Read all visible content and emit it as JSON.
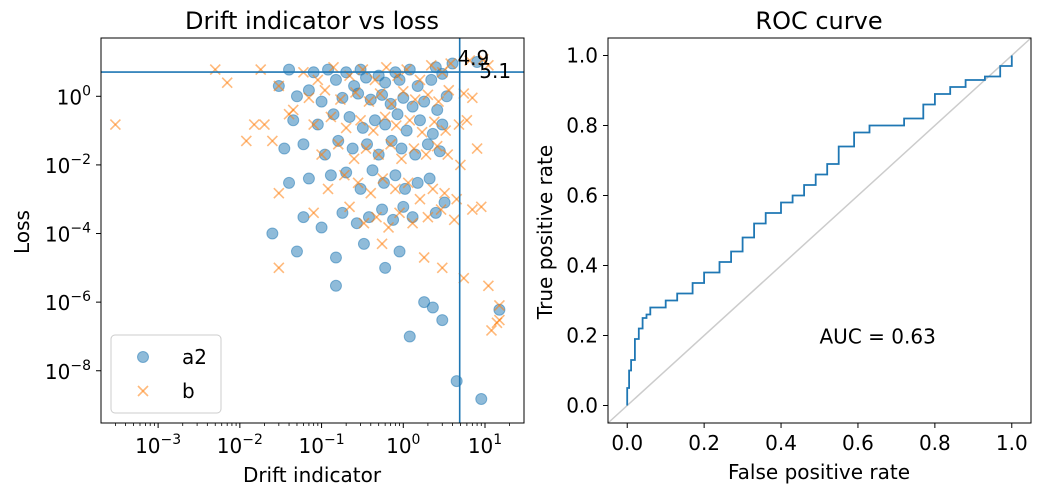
{
  "chart_data": [
    {
      "type": "scatter",
      "title": "Drift indicator vs loss",
      "xlabel": "Drift indicator",
      "ylabel": "Loss",
      "xscale": "log",
      "yscale": "log",
      "xlim": [
        0.0002,
        30
      ],
      "ylim": [
        3e-10,
        50
      ],
      "x_ticks": [
        {
          "base": "10",
          "exp": "−3",
          "value": 0.001
        },
        {
          "base": "10",
          "exp": "−2",
          "value": 0.01
        },
        {
          "base": "10",
          "exp": "−1",
          "value": 0.1
        },
        {
          "base": "10",
          "exp": "0",
          "value": 1
        },
        {
          "base": "10",
          "exp": "1",
          "value": 10
        }
      ],
      "y_ticks": [
        {
          "base": "10",
          "exp": "−8",
          "value": 1e-08
        },
        {
          "base": "10",
          "exp": "−6",
          "value": 1e-06
        },
        {
          "base": "10",
          "exp": "−4",
          "value": 0.0001
        },
        {
          "base": "10",
          "exp": "−2",
          "value": 0.01
        },
        {
          "base": "10",
          "exp": "0",
          "value": 1
        }
      ],
      "threshold_lines": {
        "x": 4.9,
        "y": 5.1,
        "color": "#1f77b4"
      },
      "annotations": [
        {
          "text": "4.9",
          "x": 4.6,
          "y": 13
        },
        {
          "text": "5.1",
          "x": 8.5,
          "y": 5.4
        }
      ],
      "legend": {
        "position": "lower-left",
        "entries": [
          {
            "label": "a2",
            "marker": "circle",
            "color": "#1f77b4"
          },
          {
            "label": "b",
            "marker": "x",
            "color": "#ff7f0e"
          }
        ]
      },
      "series": [
        {
          "name": "a2",
          "marker": "circle",
          "color": "#1f77b4",
          "points": [
            [
              0.04,
              6
            ],
            [
              0.08,
              5
            ],
            [
              0.12,
              6
            ],
            [
              0.2,
              5
            ],
            [
              0.3,
              6
            ],
            [
              0.5,
              4
            ],
            [
              0.8,
              5
            ],
            [
              1.2,
              6
            ],
            [
              2.5,
              7
            ],
            [
              4,
              9
            ],
            [
              8,
              10
            ],
            [
              0.15,
              3
            ],
            [
              0.25,
              2
            ],
            [
              0.35,
              3.5
            ],
            [
              0.6,
              2.5
            ],
            [
              0.9,
              3
            ],
            [
              1.5,
              2
            ],
            [
              2.2,
              3
            ],
            [
              3,
              4.5
            ],
            [
              0.03,
              2
            ],
            [
              0.05,
              1
            ],
            [
              0.07,
              1.5
            ],
            [
              0.1,
              0.7
            ],
            [
              0.18,
              0.9
            ],
            [
              0.28,
              1.2
            ],
            [
              0.4,
              0.8
            ],
            [
              0.55,
              1.1
            ],
            [
              0.7,
              0.6
            ],
            [
              1,
              0.9
            ],
            [
              1.3,
              0.5
            ],
            [
              1.8,
              0.7
            ],
            [
              2.6,
              0.4
            ],
            [
              3.4,
              1
            ],
            [
              0.045,
              0.2
            ],
            [
              0.09,
              0.15
            ],
            [
              0.14,
              0.3
            ],
            [
              0.22,
              0.25
            ],
            [
              0.32,
              0.12
            ],
            [
              0.45,
              0.2
            ],
            [
              0.6,
              0.15
            ],
            [
              0.85,
              0.3
            ],
            [
              1.1,
              0.1
            ],
            [
              1.6,
              0.2
            ],
            [
              2.3,
              0.08
            ],
            [
              3,
              0.15
            ],
            [
              0.035,
              0.03
            ],
            [
              0.06,
              0.04
            ],
            [
              0.11,
              0.02
            ],
            [
              0.16,
              0.05
            ],
            [
              0.24,
              0.03
            ],
            [
              0.36,
              0.04
            ],
            [
              0.5,
              0.02
            ],
            [
              0.72,
              0.05
            ],
            [
              0.95,
              0.03
            ],
            [
              1.4,
              0.02
            ],
            [
              2,
              0.04
            ],
            [
              2.8,
              0.025
            ],
            [
              0.04,
              0.003
            ],
            [
              0.07,
              0.004
            ],
            [
              0.13,
              0.005
            ],
            [
              0.2,
              0.006
            ],
            [
              0.3,
              0.002
            ],
            [
              0.42,
              0.007
            ],
            [
              0.58,
              0.003
            ],
            [
              0.8,
              0.005
            ],
            [
              1.05,
              0.002
            ],
            [
              1.5,
              0.003
            ],
            [
              2.1,
              0.004
            ],
            [
              0.025,
              0.0001
            ],
            [
              0.06,
              0.0003
            ],
            [
              0.1,
              0.00015
            ],
            [
              0.18,
              0.0004
            ],
            [
              0.27,
              0.0002
            ],
            [
              0.38,
              0.0003
            ],
            [
              0.55,
              0.0005
            ],
            [
              0.75,
              0.00025
            ],
            [
              1,
              0.0006
            ],
            [
              1.3,
              0.0003
            ],
            [
              2.5,
              0.0004
            ],
            [
              3.2,
              0.0008
            ],
            [
              0.05,
              3e-05
            ],
            [
              0.15,
              2e-05
            ],
            [
              0.33,
              5e-05
            ],
            [
              0.6,
              1e-05
            ],
            [
              0.9,
              3e-05
            ],
            [
              0.15,
              3e-06
            ],
            [
              1.8,
              1e-06
            ],
            [
              2.3,
              7e-07
            ],
            [
              3,
              3e-07
            ],
            [
              1.2,
              1e-07
            ],
            [
              4.5,
              5e-09
            ],
            [
              9,
              1.5e-09
            ],
            [
              15,
              6e-07
            ]
          ]
        },
        {
          "name": "b",
          "marker": "x",
          "color": "#ff7f0e",
          "points": [
            [
              0.0003,
              0.15
            ],
            [
              0.005,
              6
            ],
            [
              0.007,
              2.5
            ],
            [
              0.012,
              0.05
            ],
            [
              0.015,
              0.15
            ],
            [
              0.02,
              0.15
            ],
            [
              0.025,
              0.05
            ],
            [
              0.018,
              6
            ],
            [
              0.03,
              2
            ],
            [
              0.04,
              0.3
            ],
            [
              0.045,
              0.4
            ],
            [
              0.06,
              5
            ],
            [
              0.09,
              3
            ],
            [
              0.14,
              7
            ],
            [
              0.22,
              4
            ],
            [
              0.32,
              6
            ],
            [
              0.45,
              3
            ],
            [
              0.62,
              7
            ],
            [
              0.85,
              4
            ],
            [
              1.1,
              6
            ],
            [
              1.6,
              3
            ],
            [
              2.2,
              8
            ],
            [
              3,
              5
            ],
            [
              3.8,
              9
            ],
            [
              6.5,
              11
            ],
            [
              9.5,
              12
            ],
            [
              11,
              8
            ],
            [
              0.07,
              0.9
            ],
            [
              0.11,
              1.5
            ],
            [
              0.17,
              0.8
            ],
            [
              0.26,
              1.3
            ],
            [
              0.38,
              0.7
            ],
            [
              0.52,
              1.2
            ],
            [
              0.72,
              0.6
            ],
            [
              1,
              1.4
            ],
            [
              1.4,
              0.8
            ],
            [
              2,
              1.1
            ],
            [
              2.7,
              0.7
            ],
            [
              3.6,
              1.5
            ],
            [
              5.5,
              1.2
            ],
            [
              7,
              0.9
            ],
            [
              0.08,
              0.15
            ],
            [
              0.13,
              0.25
            ],
            [
              0.2,
              0.12
            ],
            [
              0.3,
              0.2
            ],
            [
              0.43,
              0.1
            ],
            [
              0.6,
              0.25
            ],
            [
              0.82,
              0.14
            ],
            [
              1.2,
              0.2
            ],
            [
              1.7,
              0.09
            ],
            [
              2.4,
              0.18
            ],
            [
              3.3,
              0.1
            ],
            [
              4.8,
              0.15
            ],
            [
              6,
              0.2
            ],
            [
              0.1,
              0.02
            ],
            [
              0.16,
              0.04
            ],
            [
              0.25,
              0.015
            ],
            [
              0.35,
              0.03
            ],
            [
              0.5,
              0.02
            ],
            [
              0.7,
              0.04
            ],
            [
              0.95,
              0.015
            ],
            [
              1.35,
              0.03
            ],
            [
              1.9,
              0.02
            ],
            [
              2.6,
              0.035
            ],
            [
              3.5,
              0.02
            ],
            [
              5,
              0.01
            ],
            [
              8,
              0.03
            ],
            [
              0.03,
              0.0015
            ],
            [
              0.12,
              0.002
            ],
            [
              0.19,
              0.005
            ],
            [
              0.28,
              0.003
            ],
            [
              0.4,
              0.0015
            ],
            [
              0.56,
              0.004
            ],
            [
              0.8,
              0.002
            ],
            [
              1.15,
              0.003
            ],
            [
              1.6,
              0.001
            ],
            [
              2.3,
              0.002
            ],
            [
              3.2,
              0.0015
            ],
            [
              4.5,
              0.001
            ],
            [
              0.08,
              0.0004
            ],
            [
              0.22,
              0.0006
            ],
            [
              0.33,
              0.0002
            ],
            [
              0.47,
              0.0003
            ],
            [
              0.66,
              0.00015
            ],
            [
              0.9,
              0.0004
            ],
            [
              1.3,
              0.0002
            ],
            [
              2,
              0.0003
            ],
            [
              2.9,
              0.0005
            ],
            [
              4.2,
              0.00025
            ],
            [
              7,
              0.0005
            ],
            [
              9,
              0.0006
            ],
            [
              0.03,
              1e-05
            ],
            [
              0.55,
              5e-05
            ],
            [
              1.8,
              2e-05
            ],
            [
              3,
              1e-05
            ],
            [
              5.5,
              5e-06
            ],
            [
              11,
              3e-06
            ],
            [
              15,
              8e-07
            ],
            [
              15,
              3e-07
            ],
            [
              14,
              2.5e-07
            ],
            [
              12,
              1.5e-07
            ]
          ]
        }
      ]
    },
    {
      "type": "line",
      "title": "ROC curve",
      "xlabel": "False positive rate",
      "ylabel": "True positive rate",
      "xlim": [
        -0.05,
        1.05
      ],
      "ylim": [
        -0.05,
        1.05
      ],
      "x_ticks": [
        "0.0",
        "0.2",
        "0.4",
        "0.6",
        "0.8",
        "1.0"
      ],
      "y_ticks": [
        "0.0",
        "0.2",
        "0.4",
        "0.6",
        "0.8",
        "1.0"
      ],
      "annotation": "AUC = 0.63",
      "auc": 0.63,
      "colors": {
        "curve": "#1f77b4",
        "diagonal": "#cccccc"
      },
      "roc": {
        "fpr": [
          0,
          0,
          0.005,
          0.005,
          0.01,
          0.01,
          0.02,
          0.02,
          0.03,
          0.03,
          0.04,
          0.04,
          0.05,
          0.05,
          0.06,
          0.06,
          0.1,
          0.1,
          0.13,
          0.13,
          0.17,
          0.17,
          0.2,
          0.2,
          0.24,
          0.24,
          0.27,
          0.27,
          0.3,
          0.3,
          0.33,
          0.33,
          0.36,
          0.36,
          0.4,
          0.4,
          0.43,
          0.43,
          0.46,
          0.46,
          0.49,
          0.49,
          0.52,
          0.52,
          0.55,
          0.55,
          0.59,
          0.59,
          0.63,
          0.63,
          0.68,
          0.68,
          0.72,
          0.72,
          0.77,
          0.77,
          0.8,
          0.8,
          0.84,
          0.84,
          0.88,
          0.88,
          0.93,
          0.93,
          0.97,
          0.97,
          1.0,
          1.0
        ],
        "tpr": [
          0,
          0.05,
          0.05,
          0.1,
          0.1,
          0.13,
          0.13,
          0.19,
          0.19,
          0.22,
          0.22,
          0.25,
          0.25,
          0.26,
          0.26,
          0.28,
          0.28,
          0.3,
          0.3,
          0.32,
          0.32,
          0.35,
          0.35,
          0.38,
          0.38,
          0.41,
          0.41,
          0.44,
          0.44,
          0.48,
          0.48,
          0.52,
          0.52,
          0.55,
          0.55,
          0.58,
          0.58,
          0.6,
          0.6,
          0.63,
          0.63,
          0.66,
          0.66,
          0.69,
          0.69,
          0.74,
          0.74,
          0.78,
          0.78,
          0.8,
          0.8,
          0.8,
          0.8,
          0.82,
          0.82,
          0.86,
          0.86,
          0.89,
          0.89,
          0.91,
          0.91,
          0.93,
          0.93,
          0.94,
          0.94,
          0.97,
          0.97,
          1.0
        ]
      }
    }
  ]
}
